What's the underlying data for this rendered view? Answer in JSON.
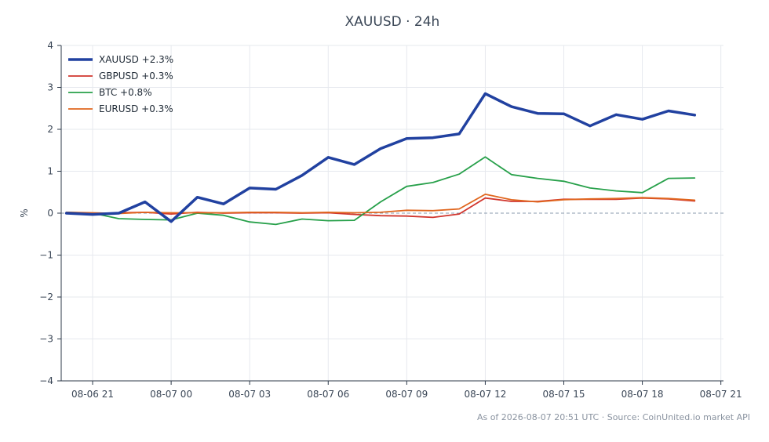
{
  "chart_data": {
    "type": "line",
    "title": "XAUUSD · 24h",
    "xlabel": "",
    "ylabel": "%",
    "ylim": [
      -4,
      4
    ],
    "y_ticks": [
      -4,
      -3,
      -2,
      -1,
      0,
      1,
      2,
      3,
      4
    ],
    "y_tick_labels": [
      "−4",
      "−3",
      "−2",
      "−1",
      "0",
      "1",
      "2",
      "3",
      "4"
    ],
    "x_ticks": [
      "08-06 21",
      "08-07 00",
      "08-07 03",
      "08-07 06",
      "08-07 09",
      "08-07 12",
      "08-07 15",
      "08-07 18",
      "08-07 21"
    ],
    "x_tick_hours": [
      0,
      3,
      6,
      9,
      12,
      15,
      18,
      21,
      24
    ],
    "x_range_hours": [
      -1.2,
      24.1
    ],
    "grid": true,
    "zero_line": true,
    "legend_position": "top-left",
    "x_hours": [
      -1,
      0,
      1,
      2,
      3,
      4,
      5,
      6,
      7,
      8,
      9,
      10,
      11,
      12,
      13,
      14,
      15,
      16,
      17,
      18,
      19,
      20,
      21,
      22,
      23
    ],
    "series": [
      {
        "name": "XAUUSD +2.3%",
        "color": "#2141a0",
        "width": 3.5,
        "values": [
          0.0,
          -0.03,
          0.0,
          0.27,
          -0.2,
          0.38,
          0.22,
          0.6,
          0.57,
          0.9,
          1.33,
          1.16,
          1.54,
          1.78,
          1.8,
          1.89,
          2.85,
          2.54,
          2.38,
          2.37,
          2.08,
          2.35,
          2.24,
          2.44,
          2.34
        ]
      },
      {
        "name": "GBPUSD +0.3%",
        "color": "#d1362e",
        "width": 1.8,
        "values": [
          0.0,
          -0.02,
          0.01,
          0.02,
          -0.02,
          0.02,
          0.0,
          0.01,
          0.01,
          0.0,
          0.01,
          -0.03,
          -0.06,
          -0.07,
          -0.1,
          -0.02,
          0.36,
          0.28,
          0.28,
          0.33,
          0.33,
          0.33,
          0.36,
          0.34,
          0.29
        ]
      },
      {
        "name": "BTC +0.8%",
        "color": "#27a04a",
        "width": 1.8,
        "values": [
          0.02,
          0.0,
          -0.13,
          -0.15,
          -0.16,
          0.0,
          -0.05,
          -0.21,
          -0.27,
          -0.14,
          -0.18,
          -0.17,
          0.27,
          0.64,
          0.73,
          0.93,
          1.34,
          0.92,
          0.83,
          0.76,
          0.6,
          0.53,
          0.49,
          0.83,
          0.84
        ]
      },
      {
        "name": "EURUSD +0.3%",
        "color": "#e0661e",
        "width": 1.8,
        "values": [
          0.02,
          0.01,
          -0.01,
          0.02,
          0.01,
          0.01,
          0.01,
          0.02,
          0.02,
          0.01,
          0.02,
          0.01,
          0.02,
          0.07,
          0.06,
          0.1,
          0.45,
          0.32,
          0.27,
          0.32,
          0.34,
          0.35,
          0.37,
          0.35,
          0.31
        ]
      }
    ]
  },
  "footer": {
    "note": "As of 2026-08-07 20:51 UTC · Source: CoinUnited.io market API"
  },
  "colors": {
    "axis": "#2d3a4a",
    "grid": "#e6e9ee",
    "zero_line": "#8a9aac"
  }
}
